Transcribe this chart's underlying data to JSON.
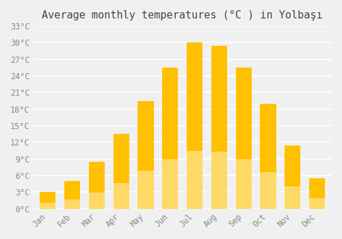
{
  "title": "Average monthly temperatures (°C ) in Yolbaşı",
  "months": [
    "Jan",
    "Feb",
    "Mar",
    "Apr",
    "May",
    "Jun",
    "Jul",
    "Aug",
    "Sep",
    "Oct",
    "Nov",
    "Dec"
  ],
  "temperatures": [
    3,
    5,
    8.5,
    13.5,
    19.5,
    25.5,
    30,
    29.5,
    25.5,
    19,
    11.5,
    5.5
  ],
  "bar_color_top": "#FFC000",
  "bar_color_bottom": "#FFD966",
  "background_color": "#F0F0F0",
  "ylim": [
    0,
    33
  ],
  "yticks": [
    0,
    3,
    6,
    9,
    12,
    15,
    18,
    21,
    24,
    27,
    30,
    33
  ],
  "ytick_labels": [
    "0°C",
    "3°C",
    "6°C",
    "9°C",
    "12°C",
    "15°C",
    "18°C",
    "21°C",
    "24°C",
    "27°C",
    "30°C",
    "33°C"
  ],
  "title_fontsize": 11,
  "tick_fontsize": 8.5,
  "grid_color": "#FFFFFF",
  "bar_width": 0.65
}
